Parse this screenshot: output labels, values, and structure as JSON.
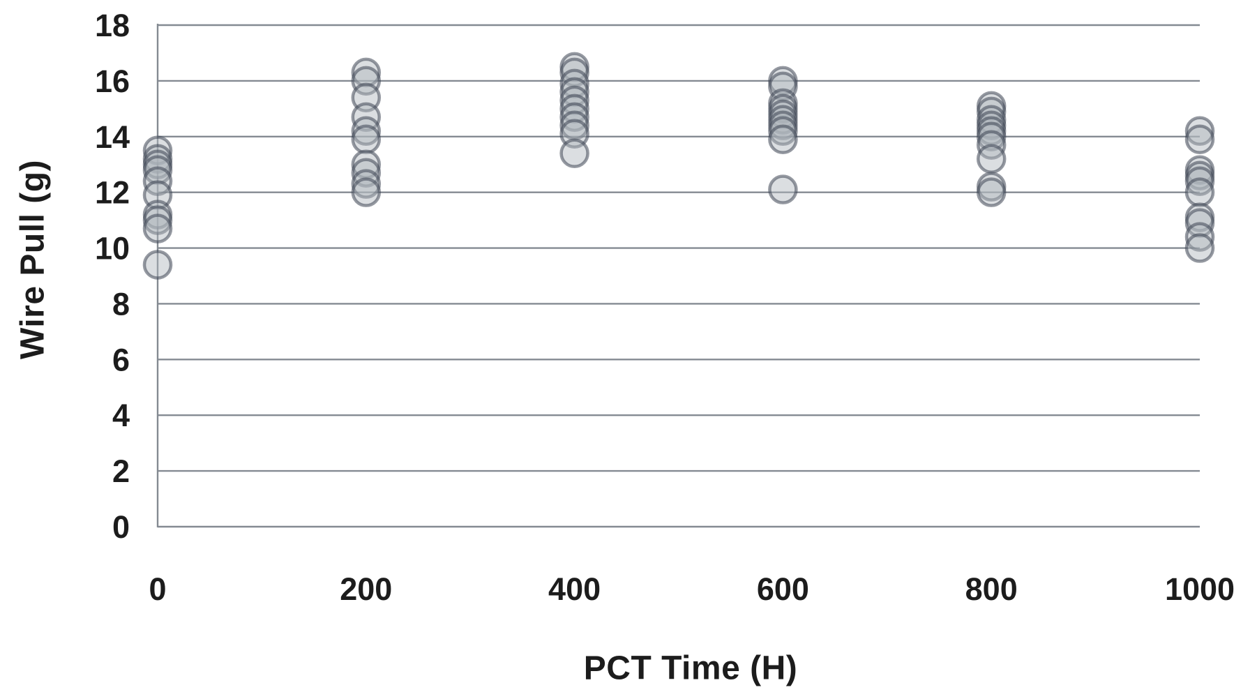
{
  "chart_data": {
    "type": "scatter",
    "title": "",
    "xlabel": "PCT Time (H)",
    "ylabel": "Wire Pull (g)",
    "x_ticks": [
      0,
      200,
      400,
      600,
      800,
      1000
    ],
    "y_ticks": [
      0,
      2,
      4,
      6,
      8,
      10,
      12,
      14,
      16,
      18
    ],
    "xlim": [
      0,
      1000
    ],
    "ylim": [
      0,
      18
    ],
    "grid": "horizontal-only",
    "legend_position": "none",
    "marker": "circle-semi-transparent",
    "groups": [
      {
        "x": 0,
        "values": [
          13.5,
          13.2,
          13.0,
          12.8,
          12.4,
          11.9,
          11.2,
          11.0,
          10.7,
          9.4
        ]
      },
      {
        "x": 200,
        "values": [
          16.3,
          16.0,
          15.4,
          14.7,
          14.2,
          13.9,
          13.0,
          12.7,
          12.3,
          12.0
        ]
      },
      {
        "x": 400,
        "values": [
          16.5,
          16.3,
          15.9,
          15.6,
          15.3,
          15.0,
          14.7,
          14.4,
          14.1,
          13.4
        ]
      },
      {
        "x": 600,
        "values": [
          16.0,
          15.8,
          15.2,
          15.0,
          14.8,
          14.6,
          14.4,
          14.2,
          13.9,
          12.1
        ]
      },
      {
        "x": 800,
        "values": [
          15.1,
          14.9,
          14.6,
          14.4,
          14.2,
          14.0,
          13.7,
          13.2,
          12.2,
          12.0
        ]
      },
      {
        "x": 1000,
        "values": [
          14.2,
          13.9,
          12.8,
          12.6,
          12.4,
          12.0,
          11.1,
          10.9,
          10.4,
          10.0
        ]
      }
    ]
  },
  "colors": {
    "background": "#ffffff",
    "gridline": "#848a92",
    "axis_line": "#848a92",
    "tick_text": "#1c1c1c",
    "marker_stroke": "rgba(62,70,84,0.55)",
    "marker_fill": "rgba(176,181,189,0.45)"
  }
}
